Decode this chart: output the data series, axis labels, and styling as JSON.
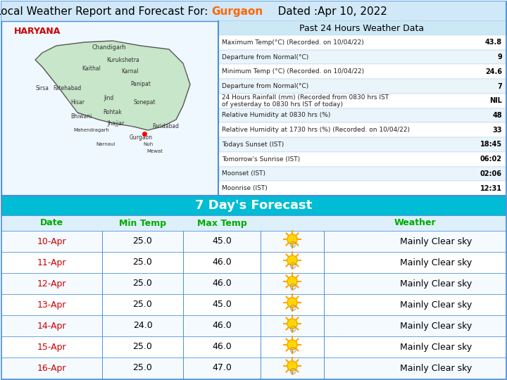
{
  "title_prefix": "Local Weather Report and Forecast For: ",
  "title_city": "Gurgaon",
  "title_suffix": "   Dated :Apr 10, 2022",
  "title_bg": "#d0e8f8",
  "title_color_normal": "#000000",
  "title_color_city": "#ff6600",
  "map_label": "HARYANA",
  "map_label_color": "#cc0000",
  "weather_header": "Past 24 Hours Weather Data",
  "weather_data": [
    {
      "label": "Maximum Temp(°C) (Recorded. on 10/04/22)",
      "value": "43.8"
    },
    {
      "label": "Departure from Normal(°C)",
      "value": "9"
    },
    {
      "label": "Minimum Temp (°C) (Recorded. on 10/04/22)",
      "value": "24.6"
    },
    {
      "label": "Departure from Normal(°C)",
      "value": "7"
    },
    {
      "label": "24 Hours Rainfall (mm) (Recorded from 0830 hrs IST\nof yesterday to 0830 hrs IST of today)",
      "value": "NIL"
    },
    {
      "label": "Relative Humidity at 0830 hrs (%)",
      "value": "48"
    },
    {
      "label": "Relative Humidity at 1730 hrs (%) (Recorded. on 10/04/22)",
      "value": "33"
    },
    {
      "label": "Todays Sunset (IST)",
      "value": "18:45"
    },
    {
      "label": "Tomorrow's Sunrise (IST)",
      "value": "06:02"
    },
    {
      "label": "Moonset (IST)",
      "value": "02:06"
    },
    {
      "label": "Moonrise (IST)",
      "value": "12:31"
    }
  ],
  "forecast_header": "7 Day's Forecast",
  "forecast_header_bg": "#00bcd4",
  "forecast_col_headers": [
    "Date",
    "Min Temp",
    "Max Temp",
    "",
    "Weather"
  ],
  "forecast_col_header_color": "#00aa00",
  "forecast_rows": [
    {
      "date": "10-Apr",
      "min": "25.0",
      "max": "45.0",
      "weather": "Mainly Clear sky"
    },
    {
      "date": "11-Apr",
      "min": "25.0",
      "max": "46.0",
      "weather": "Mainly Clear sky"
    },
    {
      "date": "12-Apr",
      "min": "25.0",
      "max": "46.0",
      "weather": "Mainly Clear sky"
    },
    {
      "date": "13-Apr",
      "min": "25.0",
      "max": "45.0",
      "weather": "Mainly Clear sky"
    },
    {
      "date": "14-Apr",
      "min": "24.0",
      "max": "46.0",
      "weather": "Mainly Clear sky"
    },
    {
      "date": "15-Apr",
      "min": "25.0",
      "max": "46.0",
      "weather": "Mainly Clear sky"
    },
    {
      "date": "16-Apr",
      "min": "25.0",
      "max": "47.0",
      "weather": "Mainly Clear sky"
    }
  ],
  "date_color": "#cc0000",
  "border_color": "#4a90d9",
  "table_bg_light": "#e8f4fc",
  "table_bg_white": "#ffffff",
  "header_section_bg": "#cde8f5",
  "map_bg": "#e8f8e8"
}
